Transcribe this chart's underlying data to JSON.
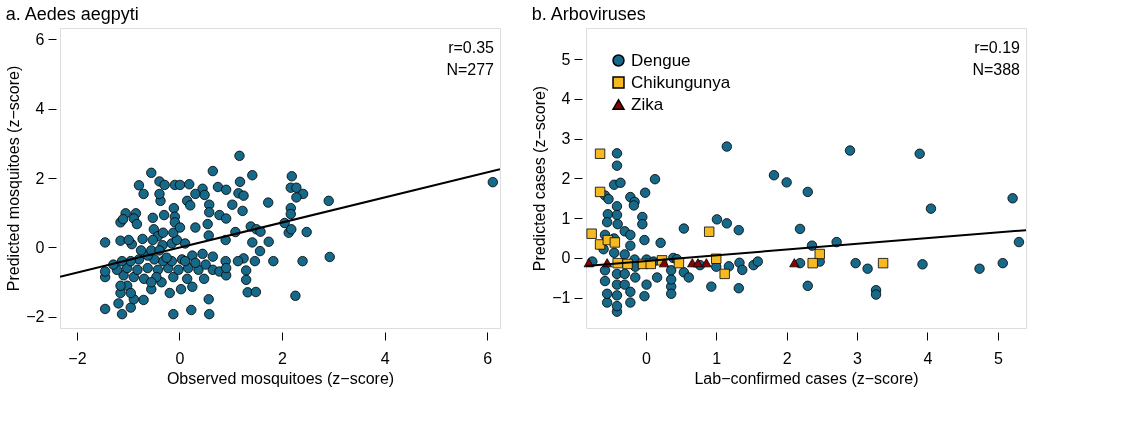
{
  "chart_data": [
    {
      "type": "scatter",
      "title": "a. Aedes aegpyti",
      "xlabel": "Observed mosquitoes (z−score)",
      "ylabel": "Predicted mosquitoes (z−score)",
      "xlim": [
        -2.33,
        6.25
      ],
      "ylim": [
        -2.33,
        6.33
      ],
      "xticks": [
        {
          "value": -2,
          "label": "−2"
        },
        0,
        2,
        4,
        6
      ],
      "yticks": [
        {
          "value": -2,
          "label": "−2"
        },
        0,
        2,
        4,
        6
      ],
      "annotations": [
        "r=0.35",
        "N=277"
      ],
      "series": [
        {
          "color": "#17698a",
          "marker": "circle",
          "x": [
            1.17,
            -0.55,
            0.65,
            1.42,
            2.19,
            -0.79,
            -0.7,
            -0.39,
            -0.29,
            -0.09,
            0.01,
            0.19,
            0.45,
            0.31,
            0.49,
            0.75,
            0.91,
            1.18,
            1.15,
            1.25,
            2.17,
            2.28,
            2.41,
            2.28,
            2.91,
            6.11,
            1.73,
            1.03,
            1.23,
            2.17,
            2.17,
            -0.37,
            -0.39,
            -0.11,
            0.15,
            0.21,
            0.58,
            0.58,
            0.78,
            0.91,
            -0.09,
            -0.09,
            -0.3,
            -0.52,
            -1.05,
            -0.85,
            -0.89,
            -1.15,
            -1.1,
            -0.83,
            0.31,
            0.55,
            0.57,
            0.9,
            1.09,
            1.39,
            1.5,
            1.58,
            2.05,
            2.13,
            2.18,
            2.48,
            1.74,
            1.42,
            1.57,
            1.83,
            2.4,
            2.93,
            1.47,
            1.25,
            1.14,
            0.9,
            1.3,
            1.3,
            1.33,
            1.49,
            2.26,
            0.57,
            0.58,
            0.23,
            -0.12,
            -1.12,
            -0.95,
            -1.45,
            -1.45,
            -1.45,
            -1.45,
            -1.15,
            -0.93,
            -0.72,
            -0.5,
            -0.42,
            -0.33,
            -0.15,
            -0.05,
            0.11,
            -1.19,
            -0.7,
            -0.89,
            -1.15,
            -1.02,
            -1.15,
            -0.55,
            -0.19,
            0.03,
            0.25,
            0.15,
            -0.12,
            -0.35,
            -0.69,
            -0.89,
            -1.09,
            -1.22,
            -1.02,
            -0.82,
            -0.62,
            -0.42,
            -0.22,
            -0.02,
            0.17,
            0.37,
            0.65,
            0.78,
            0.91,
            0.91,
            0.48,
            0.45,
            0.65,
            0.25,
            0.05,
            -0.15,
            -0.32,
            -0.49,
            -0.62,
            -0.79,
            -0.95,
            -1.12,
            -1.29,
            -0.75,
            -0.55,
            -0.39,
            -0.25,
            0.11,
            0.31,
            0.51,
            -0.45,
            -0.55,
            -0.95,
            -0.99,
            -0.12,
            0.01,
            -0.32,
            -0.52
          ],
          "values": [
            2.64,
            2.15,
            2.2,
            2.08,
            2.05,
            1.79,
            1.54,
            1.9,
            1.8,
            1.8,
            1.8,
            1.82,
            1.69,
            1.54,
            1.51,
            1.74,
            1.66,
            1.89,
            1.56,
            1.49,
            1.72,
            1.72,
            1.54,
            1.44,
            1.34,
            1.88,
            1.29,
            1.23,
            1.05,
            1.13,
            0.96,
            1.34,
            1.54,
            1.13,
            1.34,
            1.21,
            1.23,
            1.01,
            0.93,
            0.83,
            0.88,
            0.72,
            0.93,
            0.85,
            0.98,
            0.98,
            0.83,
            0.72,
            0.81,
            0.67,
            0.57,
            0.67,
            0.34,
            0.21,
            0.44,
            0.6,
            0.52,
            0.45,
            0.7,
            0.42,
            0.52,
            0.44,
            0.16,
            0.14,
            -0.11,
            -0.4,
            -0.4,
            -0.28,
            -0.4,
            -0.32,
            -0.4,
            -0.4,
            -0.67,
            -0.94,
            -1.3,
            -1.29,
            -1.4,
            -1.5,
            -1.93,
            -1.81,
            -1.93,
            -1.93,
            -1.74,
            -1.78,
            0.14,
            -0.86,
            -0.7,
            0.19,
            0.09,
            0.24,
            0.52,
            0.32,
            0.06,
            0.11,
            0.21,
            0.11,
            -1.62,
            -1.52,
            -1.5,
            -1.32,
            -1.11,
            -1.11,
            -1.21,
            -1.32,
            -1.21,
            -1.14,
            -0.91,
            -0.86,
            -1.01,
            -0.91,
            -0.86,
            -0.81,
            -0.65,
            -0.6,
            -0.65,
            -0.6,
            -0.65,
            -0.6,
            -0.65,
            -0.6,
            -0.65,
            -0.65,
            -0.7,
            -0.81,
            -0.6,
            -0.91,
            -0.19,
            -0.27,
            -0.24,
            -0.35,
            -0.4,
            -0.4,
            -0.35,
            -0.24,
            -0.35,
            -0.4,
            -0.4,
            -0.5,
            -0.09,
            -0.09,
            -0.09,
            -0.3,
            -0.4,
            -0.45,
            -0.5,
            -0.86,
            -1.01,
            -1.32,
            0.21,
            0.42,
            0.57,
            0.42,
            0.21
          ]
        },
        {
          "type": "line",
          "color": "#000000",
          "x": [
            -2.33,
            6.25
          ],
          "values": [
            -0.85,
            2.25
          ]
        }
      ]
    },
    {
      "type": "scatter",
      "title": "b. Arboviruses",
      "xlabel": "Lab−confirmed cases (z−score)",
      "ylabel": "Predicted cases (z−score)",
      "xlim": [
        -0.85,
        5.4
      ],
      "ylim": [
        -1.76,
        5.78
      ],
      "xticks": [
        0,
        1,
        2,
        3,
        4,
        5
      ],
      "yticks": [
        {
          "value": -1,
          "label": "−1"
        },
        0,
        1,
        2,
        3,
        4,
        5
      ],
      "annotations": [
        "r=0.19",
        "N=388"
      ],
      "legend": "top left",
      "series": [
        {
          "name": "Dengue",
          "color": "#17698a",
          "marker": "circle",
          "x": [
            1.15,
            2.9,
            3.89,
            -0.41,
            -0.41,
            -0.45,
            -0.36,
            0.13,
            -0.01,
            1.82,
            2.0,
            2.3,
            5.21,
            4.05,
            -0.22,
            -0.16,
            -0.17,
            -0.58,
            -0.53,
            -0.54,
            -0.41,
            -0.41,
            -0.55,
            -0.4,
            -0.05,
            -0.05,
            1.01,
            1.15,
            1.32,
            0.54,
            2.19,
            0.21,
            -0.02,
            2.36,
            2.71,
            5.3,
            -0.3,
            -0.22,
            -0.22,
            -0.45,
            -0.58,
            -0.6,
            -0.45,
            -0.3,
            -0.16,
            0.01,
            0.11,
            0.39,
            0.44,
            0.54,
            0.61,
            0.16,
            0.01,
            -0.02,
            0.36,
            0.36,
            0.36,
            0.36,
            -0.22,
            -0.22,
            -0.15,
            -0.41,
            -0.41,
            -0.41,
            -0.41,
            -0.41,
            -0.55,
            -0.55,
            -0.58,
            -0.58,
            -0.3,
            -0.3,
            0.93,
            1.0,
            1.18,
            1.33,
            1.37,
            1.32,
            1.53,
            1.59,
            2.19,
            2.47,
            2.3,
            2.98,
            3.15,
            3.27,
            3.27,
            3.93,
            4.74,
            5.07,
            0.77,
            -0.76,
            -0.15
          ],
          "values": [
            2.8,
            2.7,
            2.62,
            2.63,
            2.32,
            1.84,
            1.89,
            1.98,
            1.64,
            2.08,
            1.9,
            1.66,
            1.5,
            1.24,
            1.53,
            1.41,
            1.32,
            1.57,
            1.48,
            1.1,
            1.3,
            1.08,
            0.9,
            0.85,
            1.03,
            0.85,
            0.97,
            0.87,
            0.7,
            0.74,
            0.73,
            0.38,
            0.45,
            0.31,
            0.4,
            0.4,
            0.67,
            0.58,
            0.31,
            0.49,
            0.58,
            0.22,
            0.13,
            0.09,
            -0.04,
            -0.04,
            -0.09,
            0.0,
            -0.03,
            -0.36,
            -0.49,
            -0.49,
            -0.67,
            -0.96,
            -0.72,
            -0.9,
            -0.54,
            -0.31,
            -1.12,
            -0.85,
            -0.49,
            -1.35,
            -1.21,
            -0.94,
            -0.67,
            -0.4,
            -1.12,
            -0.9,
            -0.58,
            -0.31,
            -0.4,
            -0.67,
            -0.72,
            -0.22,
            -0.21,
            -0.12,
            -0.3,
            -0.76,
            -0.18,
            -0.09,
            -0.13,
            -0.09,
            -0.7,
            -0.13,
            -0.27,
            -0.81,
            -0.92,
            -0.16,
            -0.27,
            -0.13,
            -0.18,
            -0.09,
            -0.22
          ]
        },
        {
          "name": "Chikungunya",
          "color": "#f5b921",
          "marker": "square",
          "x": [
            -0.65,
            -0.65,
            -0.77,
            -0.65,
            -0.54,
            -0.44,
            0.9,
            1.0,
            1.12,
            2.47,
            2.37,
            3.37,
            -0.4,
            -0.26,
            -0.04,
            0.07,
            0.23,
            0.47
          ],
          "values": [
            2.62,
            1.66,
            0.61,
            0.34,
            0.45,
            0.39,
            0.66,
            -0.02,
            -0.4,
            0.1,
            -0.13,
            -0.13,
            -0.13,
            -0.15,
            -0.15,
            -0.15,
            -0.06,
            -0.13
          ]
        },
        {
          "name": "Zika",
          "color": "#8b0000",
          "marker": "triangle",
          "x": [
            -0.81,
            -0.55,
            0.26,
            0.66,
            0.74,
            0.86,
            2.11
          ],
          "values": [
            -0.12,
            -0.12,
            -0.12,
            -0.12,
            -0.12,
            -0.12,
            -0.12
          ]
        },
        {
          "type": "line",
          "color": "#000000",
          "x": [
            -0.85,
            5.4
          ],
          "values": [
            -0.2,
            0.7
          ]
        }
      ]
    }
  ]
}
